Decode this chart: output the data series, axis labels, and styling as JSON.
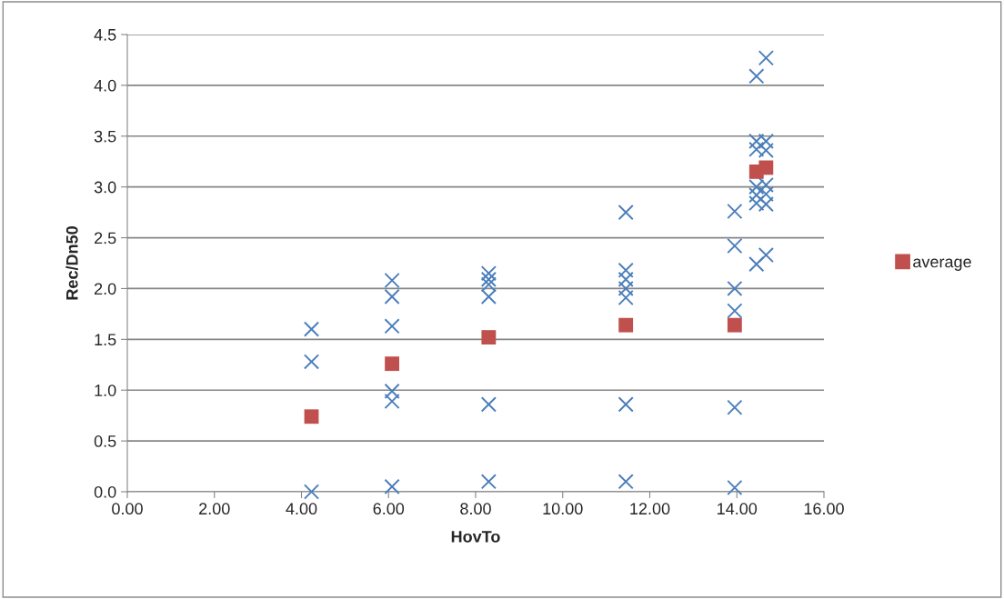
{
  "chart_data": {
    "type": "scatter",
    "xlabel": "HovTo",
    "ylabel": "Rec/Dn50",
    "series": [
      {
        "color": "#4a7ebb",
        "marker": "cross",
        "x": [
          4.23,
          4.23,
          4.23,
          6.08,
          6.08,
          6.08,
          6.08,
          6.08,
          6.08,
          8.3,
          8.3,
          8.3,
          8.3,
          8.3,
          8.3,
          11.45,
          11.45,
          11.45,
          11.45,
          11.45,
          11.45,
          11.45,
          13.95,
          13.95,
          13.95,
          13.95,
          13.95,
          13.95,
          14.45,
          14.45,
          14.45,
          14.45,
          14.45,
          14.45,
          14.45,
          14.67,
          14.67,
          14.67,
          14.67,
          14.67,
          14.67,
          14.67
        ],
        "values": [
          0.0,
          1.28,
          1.6,
          0.05,
          0.89,
          0.99,
          1.63,
          1.92,
          2.08,
          0.1,
          0.86,
          1.92,
          2.04,
          2.09,
          2.15,
          0.1,
          0.86,
          1.91,
          2.0,
          2.09,
          2.18,
          2.75,
          0.04,
          0.83,
          1.78,
          2.0,
          2.42,
          2.76,
          4.09,
          3.45,
          3.37,
          3.0,
          2.92,
          2.84,
          2.24,
          4.27,
          3.45,
          3.36,
          3.02,
          2.93,
          2.83,
          2.33
        ]
      },
      {
        "name": "average",
        "color": "#c0504d",
        "marker": "square",
        "x": [
          4.23,
          6.08,
          8.3,
          11.45,
          13.95,
          14.45,
          14.67
        ],
        "values": [
          0.74,
          1.26,
          1.52,
          1.64,
          1.64,
          3.15,
          3.19
        ]
      }
    ],
    "xlim": [
      0,
      16
    ],
    "xticks": [
      {
        "value": 0,
        "label": "0.00"
      },
      {
        "value": 2,
        "label": "2.00"
      },
      {
        "value": 4,
        "label": "4.00"
      },
      {
        "value": 6,
        "label": "6.00"
      },
      {
        "value": 8,
        "label": "8.00"
      },
      {
        "value": 10,
        "label": "10.00"
      },
      {
        "value": 12,
        "label": "12.00"
      },
      {
        "value": 14,
        "label": "14.00"
      },
      {
        "value": 16,
        "label": "16.00"
      }
    ],
    "ylim": [
      0,
      4.5
    ],
    "yticks": [
      {
        "value": 0,
        "label": "0.0"
      },
      0.5,
      {
        "value": 1,
        "label": "1.0"
      },
      1.5,
      {
        "value": 2,
        "label": "2.0"
      },
      2.5,
      {
        "value": 3,
        "label": "3.0"
      },
      3.5,
      {
        "value": 4,
        "label": "4.0"
      },
      4.5
    ],
    "grid": "y",
    "legend": "right"
  }
}
